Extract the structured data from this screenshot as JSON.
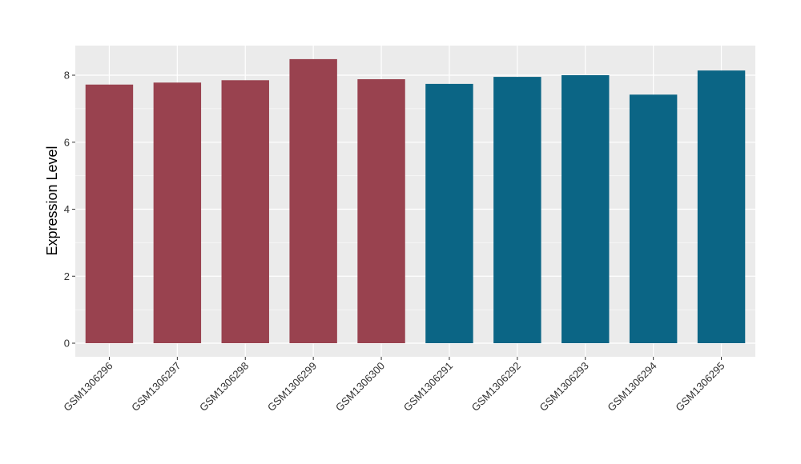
{
  "chart_data": {
    "type": "bar",
    "title": "",
    "xlabel": "",
    "ylabel": "Expression Level",
    "ylim": [
      0,
      8.9
    ],
    "yticks": [
      0,
      2,
      4,
      6,
      8
    ],
    "grid": true,
    "legend": "none",
    "categories": [
      "GSM1306296",
      "GSM1306297",
      "GSM1306298",
      "GSM1306299",
      "GSM1306300",
      "GSM1306291",
      "GSM1306292",
      "GSM1306293",
      "GSM1306294",
      "GSM1306295"
    ],
    "values": [
      7.72,
      7.78,
      7.85,
      8.48,
      7.88,
      7.74,
      7.95,
      8.0,
      7.42,
      8.14
    ],
    "bar_colors": [
      "#99424f",
      "#99424f",
      "#99424f",
      "#99424f",
      "#99424f",
      "#0b6585",
      "#0b6585",
      "#0b6585",
      "#0b6585",
      "#0b6585"
    ],
    "panel_background": "#ebebeb",
    "grid_color": "#ffffff"
  }
}
